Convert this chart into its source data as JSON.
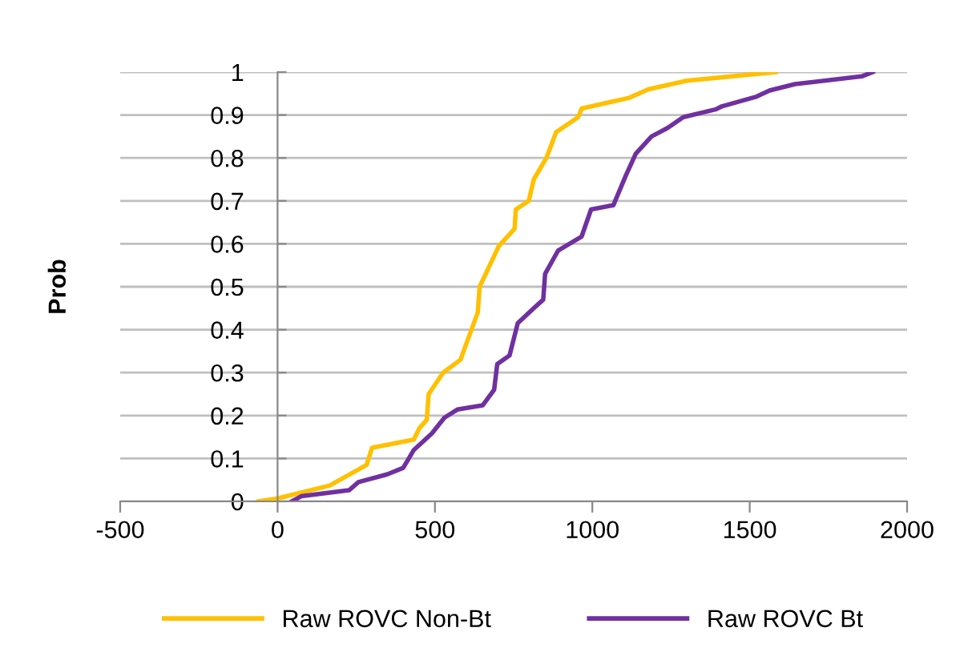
{
  "chart_data": {
    "type": "line",
    "ylabel": "Prob",
    "series": [
      {
        "name": "Raw ROVC Non-Bt",
        "color": "#ffc000",
        "x": [
          -61,
          0,
          166,
          283,
          300,
          433,
          450,
          474,
          480,
          526,
          581,
          636,
          642,
          703,
          753,
          757,
          798,
          814,
          854,
          885,
          955,
          966,
          1117,
          1178,
          1300,
          1583
        ],
        "values": [
          0,
          0.007,
          0.037,
          0.085,
          0.125,
          0.144,
          0.17,
          0.19,
          0.25,
          0.3,
          0.33,
          0.44,
          0.5,
          0.595,
          0.635,
          0.68,
          0.7,
          0.75,
          0.8,
          0.86,
          0.895,
          0.915,
          0.94,
          0.96,
          0.98,
          1.0
        ]
      },
      {
        "name": "Raw ROVC Bt",
        "color": "#7030a0",
        "x": [
          45,
          75,
          227,
          257,
          348,
          399,
          433,
          490,
          530,
          571,
          652,
          688,
          698,
          737,
          763,
          814,
          844,
          850,
          891,
          966,
          996,
          1067,
          1107,
          1138,
          1188,
          1239,
          1289,
          1391,
          1411,
          1522,
          1563,
          1644,
          1856,
          1891
        ],
        "values": [
          0,
          0.012,
          0.026,
          0.045,
          0.063,
          0.078,
          0.12,
          0.158,
          0.195,
          0.214,
          0.224,
          0.26,
          0.32,
          0.34,
          0.415,
          0.45,
          0.47,
          0.53,
          0.584,
          0.617,
          0.68,
          0.69,
          0.76,
          0.81,
          0.85,
          0.87,
          0.895,
          0.913,
          0.92,
          0.943,
          0.957,
          0.972,
          0.99,
          1.0
        ]
      }
    ],
    "xlim": [
      -500,
      2000
    ],
    "xticks": [
      -500,
      0,
      500,
      1000,
      1500,
      2000
    ],
    "ylim": [
      0,
      1
    ],
    "yticks": [
      0,
      0.1,
      0.2,
      0.3,
      0.4,
      0.5,
      0.6,
      0.7,
      0.8,
      0.9,
      1
    ],
    "grid": "y",
    "legend": "bottom",
    "marker": "none",
    "line_style": "solid"
  }
}
